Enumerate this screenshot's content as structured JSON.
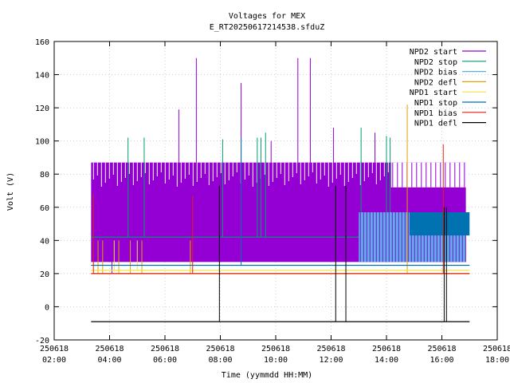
{
  "chart_data": {
    "type": "line",
    "title": "Voltages for MEX",
    "subtitle": "E_RT20250617214538.sfduZ",
    "xlabel": "Time (yymmdd HH:MM)",
    "ylabel": "Volt (V)",
    "xlim": [
      "250618 02:00",
      "250618 18:00"
    ],
    "ylim": [
      -20,
      160
    ],
    "x_ticks": [
      {
        "date": "250618",
        "time": "02:00"
      },
      {
        "date": "250618",
        "time": "04:00"
      },
      {
        "date": "250618",
        "time": "06:00"
      },
      {
        "date": "250618",
        "time": "08:00"
      },
      {
        "date": "250618",
        "time": "10:00"
      },
      {
        "date": "250618",
        "time": "12:00"
      },
      {
        "date": "250618",
        "time": "14:00"
      },
      {
        "date": "250618",
        "time": "16:00"
      },
      {
        "date": "250618",
        "time": "18:00"
      }
    ],
    "y_ticks": [
      "-20",
      "0",
      "20",
      "40",
      "60",
      "80",
      "100",
      "120",
      "140",
      "160"
    ],
    "grid": true,
    "legend_position": "top-right",
    "series": [
      {
        "name": "NPD2 start",
        "color": "#9400d3",
        "band": {
          "start": "250618 03:20",
          "end": "250618 16:52",
          "low": 27,
          "high": 87
        },
        "spikes": [
          {
            "time": "250618 04:05",
            "value": 20
          },
          {
            "time": "250618 06:30",
            "value": 119
          },
          {
            "time": "250618 07:08",
            "value": 150
          },
          {
            "time": "250618 08:45",
            "value": 135
          },
          {
            "time": "250618 09:50",
            "value": 100
          },
          {
            "time": "250618 10:48",
            "value": 150
          },
          {
            "time": "250618 11:15",
            "value": 150
          },
          {
            "time": "250618 12:05",
            "value": 108
          },
          {
            "time": "250618 13:35",
            "value": 105
          }
        ]
      },
      {
        "name": "NPD2 stop",
        "color": "#009e73",
        "level": 42,
        "start": "250618 03:20",
        "end": "250618 16:52",
        "spikes": [
          {
            "time": "250618 04:40",
            "value": 102
          },
          {
            "time": "250618 05:15",
            "value": 102
          },
          {
            "time": "250618 08:05",
            "value": 101
          },
          {
            "time": "250618 09:20",
            "value": 102
          },
          {
            "time": "250618 09:28",
            "value": 102
          },
          {
            "time": "250618 09:38",
            "value": 105
          },
          {
            "time": "250618 13:05",
            "value": 108
          },
          {
            "time": "250618 14:00",
            "value": 103
          },
          {
            "time": "250618 14:08",
            "value": 102
          }
        ]
      },
      {
        "name": "NPD2 bias",
        "color": "#56b4e9",
        "band": {
          "start": "250618 13:00",
          "end": "250618 16:52",
          "low": 27,
          "high": 57
        }
      },
      {
        "name": "NPD2 defl",
        "color": "#e69f00",
        "level": 20,
        "start": "250618 03:20",
        "end": "250618 17:00",
        "spikes": [
          {
            "time": "250618 03:35",
            "value": 40
          },
          {
            "time": "250618 03:45",
            "value": 40
          },
          {
            "time": "250618 04:20",
            "value": 40
          },
          {
            "time": "250618 04:45",
            "value": 40
          },
          {
            "time": "250618 05:10",
            "value": 40
          },
          {
            "time": "250618 06:55",
            "value": 40
          },
          {
            "time": "250618 14:45",
            "value": 122
          }
        ]
      },
      {
        "name": "NPD1 start",
        "color": "#f0e442",
        "level": 22,
        "start": "250618 03:20",
        "end": "250618 17:00",
        "spikes": [
          {
            "time": "250618 04:10",
            "value": 40
          },
          {
            "time": "250618 05:00",
            "value": 40
          }
        ]
      },
      {
        "name": "NPD1 stop",
        "color": "#0072b2",
        "level": 25,
        "start": "250618 03:20",
        "end": "250618 17:00",
        "band": {
          "start": "250618 14:50",
          "end": "250618 17:00",
          "low": 43,
          "high": 57
        },
        "spikes": [
          {
            "time": "250618 08:45",
            "value": 102
          }
        ]
      },
      {
        "name": "NPD1 bias",
        "color": "#e51e10",
        "level": 20,
        "start": "250618 03:20",
        "end": "250618 17:00",
        "spikes": [
          {
            "time": "250618 03:25",
            "value": 68
          },
          {
            "time": "250618 07:00",
            "value": 67
          },
          {
            "time": "250618 16:03",
            "value": 98
          }
        ]
      },
      {
        "name": "NPD1 defl",
        "color": "#000000",
        "level": -9,
        "start": "250618 03:20",
        "end": "250618 17:00",
        "spikes": [
          {
            "time": "250618 07:58",
            "value": 73
          },
          {
            "time": "250618 12:10",
            "value": 73
          },
          {
            "time": "250618 12:32",
            "value": 73
          },
          {
            "time": "250618 16:05",
            "value": 60
          },
          {
            "time": "250618 16:10",
            "value": 60
          }
        ]
      }
    ]
  }
}
